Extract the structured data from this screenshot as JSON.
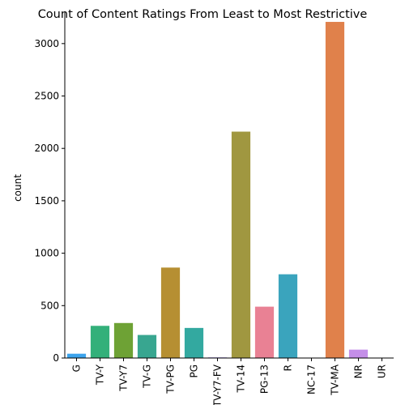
{
  "chart_data": {
    "type": "bar",
    "title": "Count of Content Ratings From Least to Most Restrictive",
    "xlabel": "",
    "ylabel": "count",
    "categories": [
      "G",
      "TV-Y",
      "TV-Y7",
      "TV-G",
      "TV-PG",
      "PG",
      "TV-Y7-FV",
      "TV-14",
      "PG-13",
      "R",
      "NC-17",
      "TV-MA",
      "NR",
      "UR"
    ],
    "values": [
      41,
      307,
      334,
      220,
      863,
      287,
      6,
      2160,
      490,
      799,
      3,
      3207,
      80,
      3
    ],
    "colors": [
      "#3ba3ec",
      "#33b07a",
      "#6ea235",
      "#38a690",
      "#b68f32",
      "#33a9a0",
      "#a48cf4",
      "#a09740",
      "#e98194",
      "#3aa4bd",
      "#4fa6d6",
      "#e0814b",
      "#c48ee8",
      "#e886c7"
    ],
    "yticks": [
      0,
      500,
      1000,
      1500,
      2000,
      2500,
      3000
    ],
    "ylim": [
      0,
      3300
    ],
    "grid": false,
    "legend": "none"
  }
}
